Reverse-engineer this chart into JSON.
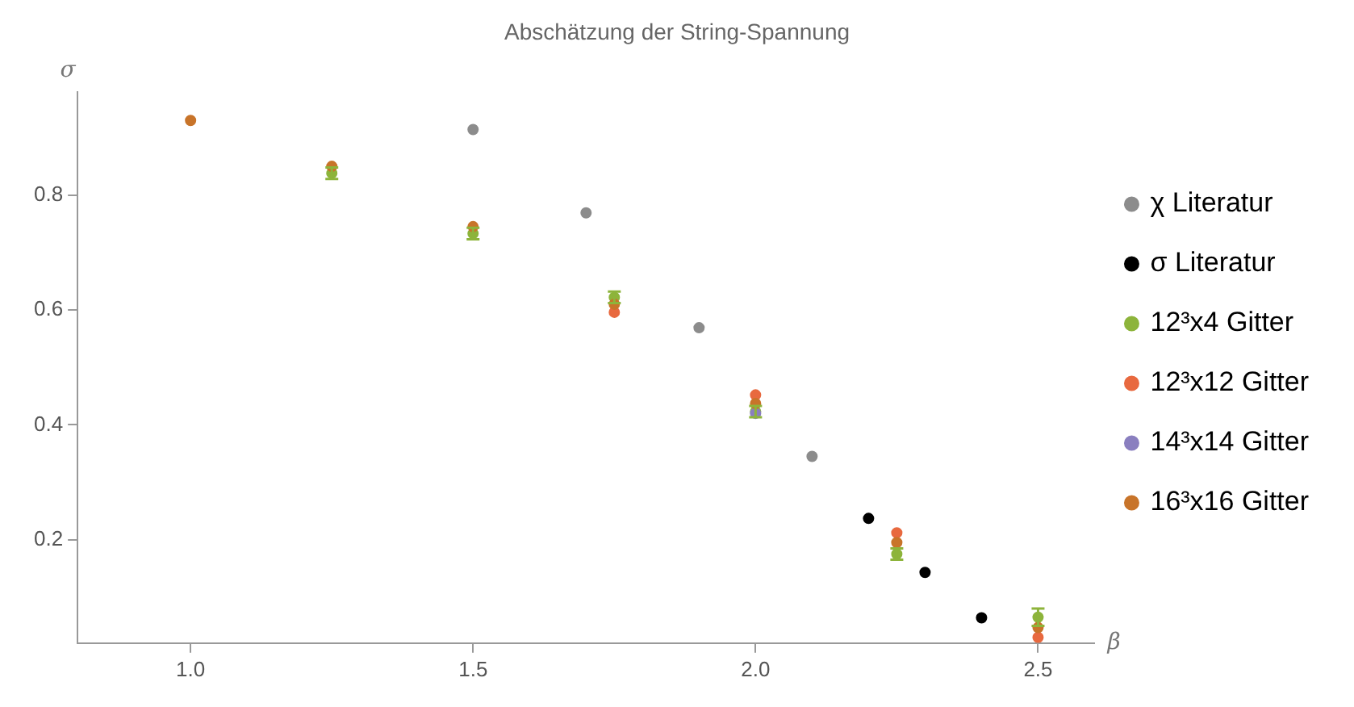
{
  "chart_data": {
    "type": "scatter",
    "title": "Abschätzung der String-Spannung",
    "xlabel": "β",
    "ylabel": "σ",
    "xlim": [
      0.8,
      2.6
    ],
    "xticks": [
      {
        "value": 1.0,
        "label": "1.0"
      },
      {
        "value": 1.5,
        "label": "1.5"
      },
      {
        "value": 2.0,
        "label": "2.0"
      },
      {
        "value": 2.5,
        "label": "2.5"
      }
    ],
    "ylim": [
      0.02,
      0.98
    ],
    "yticks": [
      {
        "value": 0.2,
        "label": "0.2"
      },
      {
        "value": 0.4,
        "label": "0.4"
      },
      {
        "value": 0.6,
        "label": "0.6"
      },
      {
        "value": 0.8,
        "label": "0.8"
      }
    ],
    "grid": false,
    "legend": "right",
    "marker": "circle",
    "series": [
      {
        "name": "χ Literatur",
        "color": "#8c8c8c",
        "x": [
          1.5,
          1.7,
          1.9,
          2.1
        ],
        "values": [
          0.914,
          0.769,
          0.569,
          0.345
        ]
      },
      {
        "name": "σ Literatur",
        "color": "#000000",
        "x": [
          2.2,
          2.3,
          2.4
        ],
        "values": [
          0.237,
          0.143,
          0.064
        ]
      },
      {
        "name": "12³x4 Gitter",
        "color": "#8db43b",
        "x": [
          1.25,
          1.5,
          1.75,
          2.0,
          2.25,
          2.5
        ],
        "values": [
          0.838,
          0.733,
          0.622,
          0.423,
          0.175,
          0.065
        ],
        "errors": [
          0.01,
          0.01,
          0.01,
          0.01,
          0.01,
          0.015
        ]
      },
      {
        "name": "12³x12 Gitter",
        "color": "#e8693f",
        "x": [
          1.75,
          2.0,
          2.25,
          2.5
        ],
        "values": [
          0.596,
          0.452,
          0.212,
          0.03
        ]
      },
      {
        "name": "14³x14 Gitter",
        "color": "#8a7fbf",
        "x": [
          2.0
        ],
        "values": [
          0.42
        ]
      },
      {
        "name": "16³x16 Gitter",
        "color": "#c8742a",
        "x": [
          1.0,
          1.25,
          1.5,
          1.75,
          2.0,
          2.25,
          2.5
        ],
        "values": [
          0.93,
          0.85,
          0.745,
          0.61,
          0.437,
          0.195,
          0.047
        ]
      }
    ]
  }
}
